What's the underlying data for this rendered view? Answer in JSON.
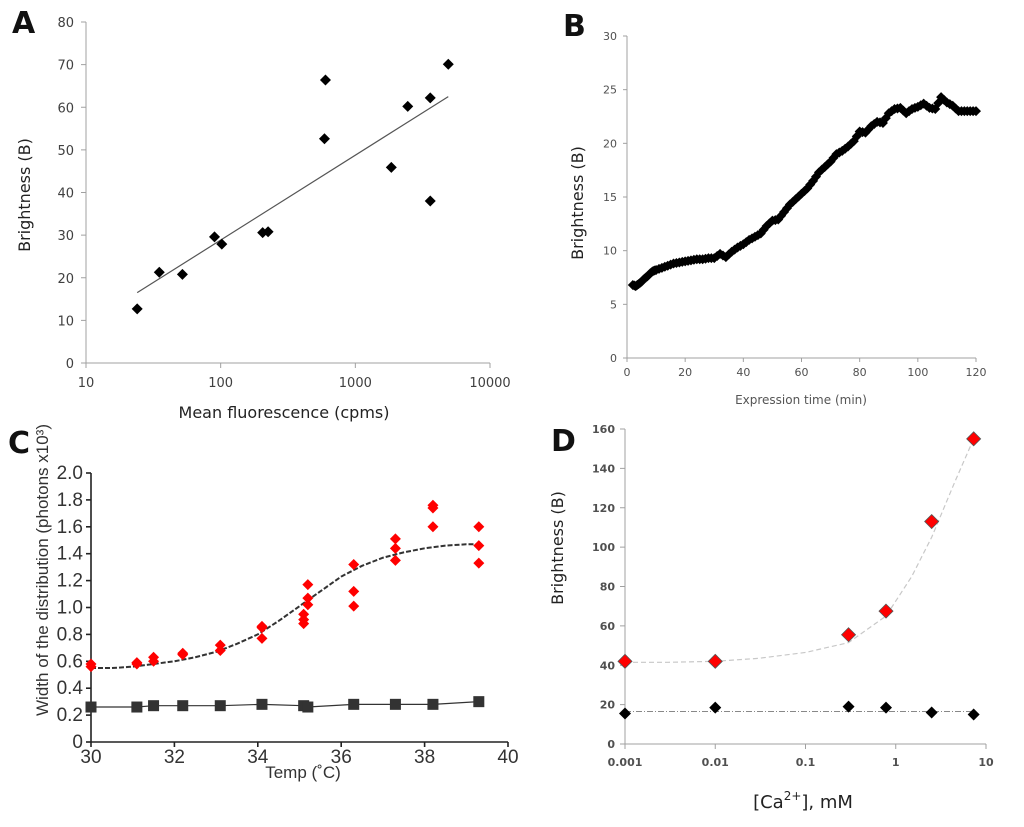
{
  "chart_data": [
    {
      "panel": "A",
      "type": "scatter",
      "title": "",
      "xlabel": "Mean fluorescence (cpms)",
      "ylabel": "Brightness (B)",
      "xscale": "log",
      "xlim": [
        10,
        10000
      ],
      "ylim": [
        0,
        80
      ],
      "xticks": [
        10,
        100,
        1000,
        10000
      ],
      "xtick_labels": [
        "10",
        "100",
        "1000",
        "10000"
      ],
      "yticks": [
        0,
        10,
        20,
        30,
        40,
        50,
        60,
        70,
        80
      ],
      "ytick_labels": [
        "0",
        "10",
        "20",
        "30",
        "40",
        "50",
        "60",
        "70",
        "80"
      ],
      "grid": false,
      "legend": "none",
      "colors": {
        "marker": "#000000",
        "trendline": "#555555",
        "axis": "#a0a0a0"
      },
      "series": [
        {
          "name": "data",
          "marker": "diamond",
          "points": [
            {
              "x": 24,
              "y": 12.7
            },
            {
              "x": 35,
              "y": 21.3
            },
            {
              "x": 52,
              "y": 20.8
            },
            {
              "x": 90,
              "y": 29.6
            },
            {
              "x": 102,
              "y": 27.9
            },
            {
              "x": 205,
              "y": 30.6
            },
            {
              "x": 225,
              "y": 30.8
            },
            {
              "x": 600,
              "y": 66.4
            },
            {
              "x": 590,
              "y": 52.6
            },
            {
              "x": 1850,
              "y": 45.9
            },
            {
              "x": 2450,
              "y": 60.2
            },
            {
              "x": 3600,
              "y": 62.2
            },
            {
              "x": 3600,
              "y": 38.0
            },
            {
              "x": 4900,
              "y": 70.1
            }
          ]
        }
      ],
      "trendline": {
        "type": "log-linear",
        "from": {
          "x": 24,
          "y": 16.5
        },
        "to": {
          "x": 4900,
          "y": 62.5
        }
      }
    },
    {
      "panel": "B",
      "type": "scatter",
      "title": "",
      "xlabel": "Expression time (min)",
      "ylabel": "Brightness (B)",
      "xlim": [
        0,
        120
      ],
      "ylim": [
        0,
        30
      ],
      "xticks": [
        0,
        20,
        40,
        60,
        80,
        100,
        120
      ],
      "xtick_labels": [
        "0",
        "20",
        "40",
        "60",
        "80",
        "100",
        "120"
      ],
      "yticks": [
        0,
        5,
        10,
        15,
        20,
        25,
        30
      ],
      "ytick_labels": [
        "0",
        "5",
        "10",
        "15",
        "20",
        "25",
        "30"
      ],
      "grid": false,
      "legend": "none",
      "colors": {
        "marker": "#000000",
        "axis": "#a0a0a0"
      },
      "series": [
        {
          "name": "time course (dense diamonds)",
          "marker": "diamond",
          "x": [
            2,
            3,
            4,
            5,
            6,
            7,
            8,
            9,
            10,
            12,
            14,
            16,
            18,
            20,
            22,
            24,
            26,
            28,
            30,
            32,
            34,
            36,
            38,
            40,
            42,
            44,
            46,
            48,
            50,
            52,
            54,
            56,
            58,
            60,
            62,
            64,
            66,
            68,
            70,
            72,
            74,
            76,
            78,
            80,
            82,
            84,
            86,
            88,
            90,
            92,
            94,
            96,
            98,
            100,
            102,
            104,
            106,
            108,
            110,
            112,
            114,
            116,
            118,
            120
          ],
          "y": [
            6.8,
            6.7,
            6.9,
            7.1,
            7.4,
            7.6,
            7.9,
            8.1,
            8.2,
            8.4,
            8.6,
            8.8,
            8.9,
            9.0,
            9.1,
            9.2,
            9.2,
            9.3,
            9.3,
            9.7,
            9.4,
            9.9,
            10.3,
            10.6,
            11.0,
            11.3,
            11.6,
            12.3,
            12.8,
            12.9,
            13.6,
            14.3,
            14.8,
            15.3,
            15.8,
            16.5,
            17.3,
            17.8,
            18.3,
            19.0,
            19.3,
            19.7,
            20.2,
            21.1,
            21.0,
            21.6,
            22.0,
            21.9,
            22.8,
            23.2,
            23.3,
            22.8,
            23.2,
            23.4,
            23.7,
            23.3,
            23.2,
            24.3,
            23.8,
            23.5,
            23.0,
            23.0,
            23.0,
            23.0
          ]
        }
      ]
    },
    {
      "panel": "C",
      "type": "scatter",
      "title": "",
      "xlabel": "Temp (˚C)",
      "ylabel": "Width of the distribution (photons x10³)",
      "xlim": [
        30,
        40
      ],
      "ylim": [
        0,
        2.0
      ],
      "xticks": [
        30,
        32,
        34,
        36,
        38,
        40
      ],
      "xtick_labels": [
        "30",
        "32",
        "34",
        "36",
        "38",
        "40"
      ],
      "yticks": [
        0,
        0.2,
        0.4,
        0.6,
        0.8,
        1.0,
        1.2,
        1.4,
        1.6,
        1.8,
        2.0
      ],
      "ytick_labels": [
        "0",
        "0.2",
        "0.4",
        "0.6",
        "0.8",
        "1.0",
        "1.2",
        "1.4",
        "1.6",
        "1.8",
        "2.0"
      ],
      "grid": false,
      "legend": "none",
      "colors": {
        "red_marker": "#ff0000",
        "square_marker": "#333333",
        "fit": "#333333",
        "axis": "#222222"
      },
      "series": [
        {
          "name": "red diamonds",
          "marker": "diamond",
          "points": [
            {
              "x": 30.0,
              "y": 0.56
            },
            {
              "x": 30.0,
              "y": 0.58
            },
            {
              "x": 31.1,
              "y": 0.58
            },
            {
              "x": 31.1,
              "y": 0.59
            },
            {
              "x": 31.5,
              "y": 0.6
            },
            {
              "x": 31.5,
              "y": 0.63
            },
            {
              "x": 32.2,
              "y": 0.65
            },
            {
              "x": 32.2,
              "y": 0.66
            },
            {
              "x": 33.1,
              "y": 0.68
            },
            {
              "x": 33.1,
              "y": 0.72
            },
            {
              "x": 34.1,
              "y": 0.77
            },
            {
              "x": 34.1,
              "y": 0.85
            },
            {
              "x": 34.1,
              "y": 0.86
            },
            {
              "x": 35.1,
              "y": 0.88
            },
            {
              "x": 35.1,
              "y": 0.91
            },
            {
              "x": 35.1,
              "y": 0.95
            },
            {
              "x": 35.2,
              "y": 1.02
            },
            {
              "x": 35.2,
              "y": 1.07
            },
            {
              "x": 35.2,
              "y": 1.17
            },
            {
              "x": 36.3,
              "y": 1.01
            },
            {
              "x": 36.3,
              "y": 1.12
            },
            {
              "x": 36.3,
              "y": 1.32
            },
            {
              "x": 37.3,
              "y": 1.35
            },
            {
              "x": 37.3,
              "y": 1.44
            },
            {
              "x": 37.3,
              "y": 1.51
            },
            {
              "x": 38.2,
              "y": 1.6
            },
            {
              "x": 38.2,
              "y": 1.74
            },
            {
              "x": 38.2,
              "y": 1.76
            },
            {
              "x": 39.3,
              "y": 1.33
            },
            {
              "x": 39.3,
              "y": 1.46
            },
            {
              "x": 39.3,
              "y": 1.6
            }
          ]
        },
        {
          "name": "sigmoid fit (dashed)",
          "line": "dashed",
          "x": [
            30,
            30.5,
            31,
            31.5,
            32,
            32.5,
            33,
            33.5,
            34,
            34.5,
            35,
            35.5,
            36,
            36.5,
            37,
            37.5,
            38,
            38.5,
            39,
            39.3
          ],
          "y": [
            0.55,
            0.55,
            0.56,
            0.58,
            0.6,
            0.63,
            0.67,
            0.73,
            0.8,
            0.9,
            1.01,
            1.12,
            1.23,
            1.31,
            1.37,
            1.41,
            1.44,
            1.46,
            1.47,
            1.47
          ]
        },
        {
          "name": "black squares",
          "marker": "square",
          "line": "solid",
          "x": [
            30.0,
            31.1,
            31.5,
            32.2,
            33.1,
            34.1,
            35.1,
            35.2,
            36.3,
            37.3,
            38.2,
            39.3
          ],
          "y": [
            0.26,
            0.26,
            0.27,
            0.27,
            0.27,
            0.28,
            0.27,
            0.26,
            0.28,
            0.28,
            0.28,
            0.3
          ]
        }
      ]
    },
    {
      "panel": "D",
      "type": "scatter",
      "title": "",
      "xlabel": "[Ca2+], mM",
      "xlabel_parts": {
        "pre": "[Ca",
        "sup": "2+",
        "post": "], mM"
      },
      "ylabel": "Brightness (B)",
      "xscale": "log",
      "xlim": [
        0.001,
        10
      ],
      "ylim": [
        0,
        160
      ],
      "xticks": [
        0.001,
        0.01,
        0.1,
        1,
        10
      ],
      "xtick_labels": [
        "0.001",
        "0.01",
        "0.1",
        "1",
        "10"
      ],
      "yticks": [
        0,
        20,
        40,
        60,
        80,
        100,
        120,
        140,
        160
      ],
      "ytick_labels": [
        "0",
        "20",
        "40",
        "60",
        "80",
        "100",
        "120",
        "140",
        "160"
      ],
      "grid": false,
      "legend": "none",
      "colors": {
        "red_marker": "#ff0000",
        "black_marker": "#000000",
        "fit": "#c8c8c8",
        "flat": "#888888",
        "axis": "#a0a0a0"
      },
      "series": [
        {
          "name": "red diamonds",
          "marker": "diamond",
          "x": [
            0.001,
            0.01,
            0.3,
            0.78,
            2.5,
            7.3
          ],
          "y": [
            42,
            42,
            55.5,
            67.5,
            113,
            155
          ]
        },
        {
          "name": "red fit (dashed)",
          "line": "dashed",
          "x": [
            0.001,
            0.003,
            0.01,
            0.03,
            0.1,
            0.3,
            0.78,
            1.5,
            2.5,
            4.5,
            7.3
          ],
          "y": [
            41.5,
            41.5,
            42,
            43.5,
            46.5,
            51.5,
            65,
            85,
            105,
            133,
            155
          ]
        },
        {
          "name": "black diamonds",
          "marker": "diamond",
          "x": [
            0.001,
            0.01,
            0.3,
            0.78,
            2.5,
            7.3
          ],
          "y": [
            15.5,
            18.5,
            19,
            18.5,
            16,
            15
          ]
        },
        {
          "name": "black fit (dash-dot)",
          "line": "dashdot",
          "x": [
            0.001,
            7.3
          ],
          "y": [
            16.5,
            16.5
          ]
        }
      ]
    }
  ]
}
